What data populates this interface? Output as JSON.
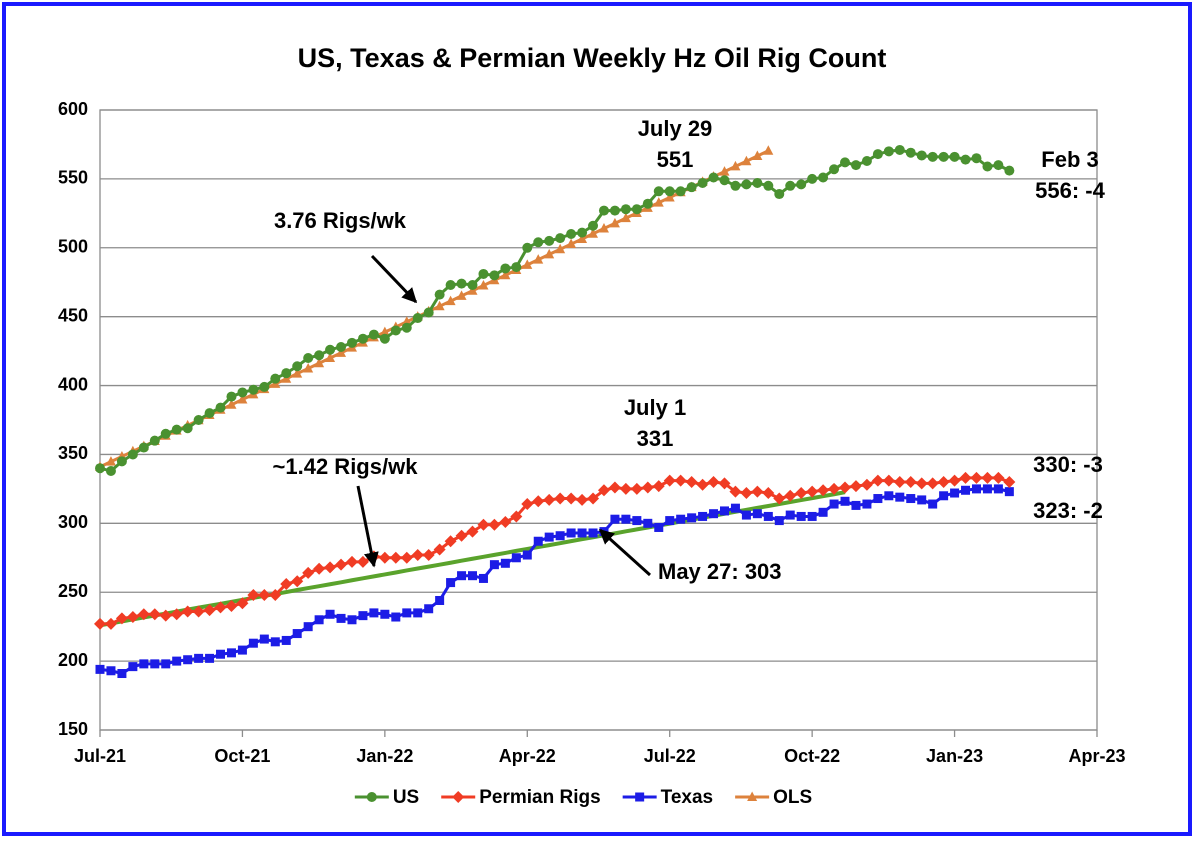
{
  "chart_data": {
    "type": "line",
    "title": "US, Texas & Permian Weekly Hz Oil Rig Count",
    "categories": [
      "Jul-21",
      null,
      null,
      null,
      null,
      null,
      null,
      null,
      null,
      null,
      null,
      null,
      null,
      "Oct-21",
      null,
      null,
      null,
      null,
      null,
      null,
      null,
      null,
      null,
      null,
      null,
      null,
      "Jan-22",
      null,
      null,
      null,
      null,
      null,
      null,
      null,
      null,
      null,
      null,
      null,
      null,
      "Apr-22",
      null,
      null,
      null,
      null,
      null,
      null,
      null,
      null,
      null,
      null,
      null,
      null,
      "Jul-22",
      null,
      null,
      null,
      null,
      null,
      null,
      null,
      null,
      null,
      null,
      null,
      null,
      "Oct-22",
      null,
      null,
      null,
      null,
      null,
      null,
      null,
      null,
      null,
      null,
      null,
      null,
      "Jan-23",
      null,
      null,
      null,
      null,
      null,
      null,
      null,
      null,
      null,
      null,
      null,
      null,
      "Apr-23"
    ],
    "ylim": [
      150,
      600
    ],
    "yticks": [
      150,
      200,
      250,
      300,
      350,
      400,
      450,
      500,
      550,
      600
    ],
    "grid": true,
    "series": [
      {
        "name": "US",
        "color": "#4a9130",
        "marker": "circle",
        "values": [
          340,
          338,
          345,
          350,
          355,
          360,
          365,
          368,
          369,
          375,
          380,
          384,
          392,
          395,
          397,
          399,
          405,
          409,
          414,
          420,
          422,
          426,
          428,
          431,
          434,
          437,
          434,
          440,
          442,
          449,
          453,
          466,
          473,
          474,
          473,
          481,
          480,
          485,
          486,
          500,
          504,
          505,
          507,
          510,
          511,
          516,
          527,
          527,
          528,
          528,
          532,
          541,
          541,
          541,
          544,
          547,
          551,
          549,
          545,
          546,
          547,
          545,
          539,
          545,
          546,
          550,
          551,
          557,
          562,
          560,
          563,
          568,
          570,
          571,
          569,
          567,
          566,
          566,
          566,
          564,
          565,
          559,
          560,
          556,
          null,
          null,
          null,
          null,
          null,
          null,
          null,
          null
        ]
      },
      {
        "name": "Permian Rigs",
        "color": "#f03c24",
        "marker": "diamond",
        "values": [
          227,
          227,
          231,
          232,
          234,
          234,
          233,
          234,
          236,
          236,
          237,
          239,
          240,
          242,
          248,
          248,
          248,
          256,
          258,
          264,
          267,
          268,
          270,
          272,
          272,
          276,
          275,
          275,
          275,
          277,
          277,
          281,
          287,
          291,
          294,
          299,
          299,
          301,
          305,
          314,
          316,
          317,
          318,
          318,
          317,
          318,
          324,
          326,
          325,
          325,
          326,
          327,
          331,
          331,
          330,
          328,
          330,
          329,
          323,
          322,
          323,
          322,
          318,
          320,
          322,
          323,
          324,
          325,
          326,
          327,
          328,
          331,
          331,
          330,
          330,
          329,
          329,
          330,
          331,
          333,
          333,
          333,
          333,
          330,
          null,
          null,
          null,
          null,
          null,
          null,
          null,
          null
        ]
      },
      {
        "name": "Texas",
        "color": "#1c1ce6",
        "marker": "square",
        "values": [
          194,
          193,
          191,
          196,
          198,
          198,
          198,
          200,
          201,
          202,
          202,
          205,
          206,
          208,
          213,
          216,
          214,
          215,
          220,
          225,
          230,
          234,
          231,
          230,
          233,
          235,
          234,
          232,
          235,
          235,
          238,
          244,
          257,
          262,
          262,
          260,
          270,
          271,
          275,
          277,
          287,
          290,
          291,
          293,
          293,
          293,
          294,
          303,
          303,
          302,
          300,
          297,
          302,
          303,
          304,
          305,
          307,
          309,
          311,
          306,
          307,
          305,
          302,
          306,
          305,
          305,
          308,
          314,
          316,
          313,
          314,
          318,
          320,
          319,
          318,
          317,
          314,
          320,
          322,
          324,
          325,
          325,
          325,
          323,
          null,
          null,
          null,
          null,
          null,
          null,
          null,
          null
        ]
      },
      {
        "name": "OLS",
        "color": "#dd823c",
        "marker": "triangle",
        "values": [
          341.0,
          344.8,
          348.5,
          352.3,
          356.0,
          359.8,
          363.6,
          367.3,
          371.1,
          374.8,
          378.6,
          382.4,
          386.1,
          389.9,
          393.6,
          397.4,
          401.2,
          404.9,
          408.7,
          412.4,
          416.2,
          420.0,
          423.7,
          427.5,
          431.2,
          435.0,
          438.8,
          442.5,
          446.3,
          450.0,
          453.8,
          457.6,
          461.3,
          465.1,
          468.8,
          472.6,
          476.4,
          480.1,
          483.9,
          487.6,
          491.4,
          495.2,
          498.9,
          502.7,
          506.4,
          510.2,
          514.0,
          517.7,
          521.5,
          525.2,
          529.0,
          532.8,
          536.5,
          540.3,
          544.0,
          547.8,
          551.6,
          555.3,
          559.1,
          562.8,
          566.6,
          570.4,
          null,
          null,
          null,
          null,
          null,
          null,
          null,
          null,
          null,
          null,
          null,
          null,
          null,
          null,
          null,
          null,
          null,
          null,
          null,
          null,
          null,
          null,
          null,
          null,
          null,
          null,
          null,
          null,
          null,
          null
        ]
      },
      {
        "color": "#5aa32c",
        "marker": "none",
        "values": [
          226.0,
          227.4,
          228.8,
          230.3,
          231.7,
          233.1,
          234.5,
          235.9,
          237.4,
          238.8,
          240.2,
          241.6,
          243.0,
          244.5,
          245.9,
          247.3,
          248.7,
          250.1,
          251.6,
          253.0,
          254.4,
          255.8,
          257.2,
          258.7,
          260.1,
          261.5,
          262.9,
          264.3,
          265.8,
          267.2,
          268.6,
          270.0,
          271.4,
          272.9,
          274.3,
          275.7,
          277.1,
          278.5,
          280.0,
          281.4,
          282.8,
          284.2,
          285.6,
          287.1,
          288.5,
          289.9,
          291.3,
          292.7,
          294.2,
          295.6,
          297.0,
          298.4,
          299.8,
          301.3,
          302.7,
          304.1,
          305.5,
          306.9,
          308.4,
          309.8,
          311.2,
          312.6,
          314.0,
          315.5,
          316.9,
          318.3,
          319.7,
          321.1,
          322.6,
          null,
          null,
          null,
          null,
          null,
          null,
          null,
          null,
          null,
          null,
          null,
          null,
          null,
          null,
          null,
          null,
          null,
          null,
          null,
          null,
          null,
          null,
          null
        ]
      }
    ],
    "annotations": [
      "July 29",
      "551",
      "Feb 3",
      "556: -4",
      "3.76 Rigs/wk",
      "July 1",
      "331",
      "~1.42 Rigs/wk",
      "330: -3",
      "323: -2",
      "May 27: 303"
    ]
  }
}
